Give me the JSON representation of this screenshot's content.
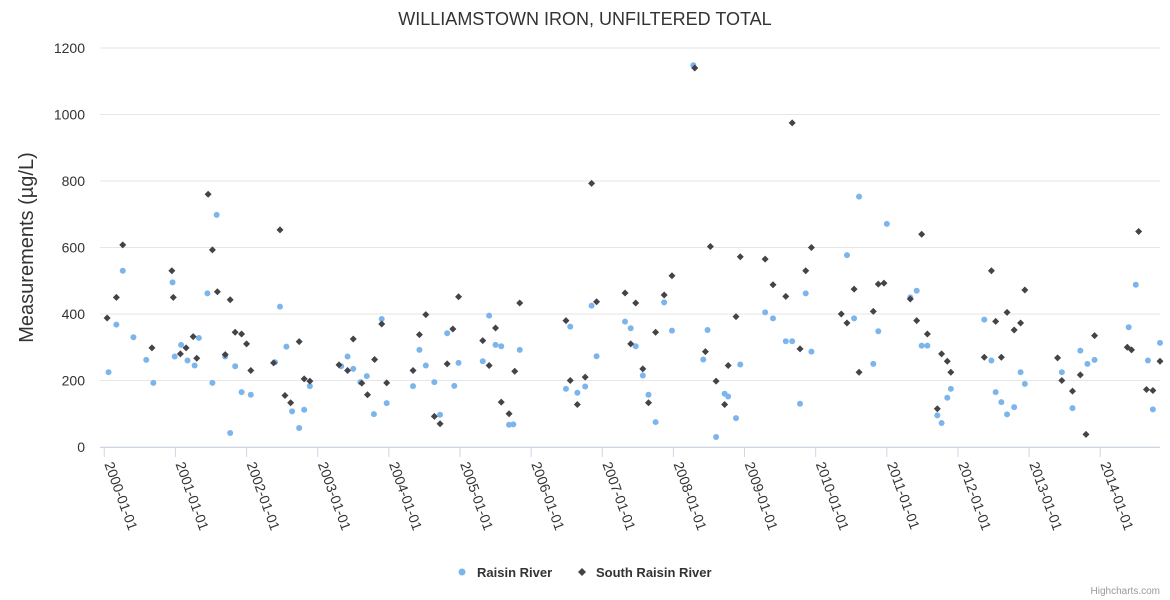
{
  "chart_data": {
    "type": "scatter",
    "title": "WILLIAMSTOWN IRON, UNFILTERED TOTAL",
    "xlabel": "",
    "ylabel": "Measurements (µg/L)",
    "xlim": [
      1999.94,
      2014.84
    ],
    "ylim": [
      0,
      1200
    ],
    "yticks": [
      0,
      200,
      400,
      600,
      800,
      1000,
      1200
    ],
    "xticks": [
      {
        "label": "2000-01-01",
        "value": 2000.0
      },
      {
        "label": "2001-01-01",
        "value": 2001.0
      },
      {
        "label": "2002-01-01",
        "value": 2002.0
      },
      {
        "label": "2003-01-01",
        "value": 2003.0
      },
      {
        "label": "2004-01-01",
        "value": 2004.0
      },
      {
        "label": "2005-01-01",
        "value": 2005.0
      },
      {
        "label": "2006-01-01",
        "value": 2006.0
      },
      {
        "label": "2007-01-01",
        "value": 2007.0
      },
      {
        "label": "2008-01-01",
        "value": 2008.0
      },
      {
        "label": "2009-01-01",
        "value": 2009.0
      },
      {
        "label": "2010-01-01",
        "value": 2010.0
      },
      {
        "label": "2011-01-01",
        "value": 2011.0
      },
      {
        "label": "2012-01-01",
        "value": 2012.0
      },
      {
        "label": "2013-01-01",
        "value": 2013.0
      },
      {
        "label": "2014-01-01",
        "value": 2014.0
      }
    ],
    "grid": true,
    "legend_position": "bottom-center",
    "series": [
      {
        "name": "Raisin River",
        "marker": "circle",
        "color": "#7cb5ec",
        "points": [
          [
            2000.06,
            225
          ],
          [
            2000.17,
            368
          ],
          [
            2000.26,
            530
          ],
          [
            2000.41,
            330
          ],
          [
            2000.59,
            262
          ],
          [
            2000.69,
            193
          ],
          [
            2000.96,
            495
          ],
          [
            2000.99,
            272
          ],
          [
            2001.08,
            307
          ],
          [
            2001.17,
            260
          ],
          [
            2001.27,
            245
          ],
          [
            2001.33,
            328
          ],
          [
            2001.45,
            462
          ],
          [
            2001.52,
            193
          ],
          [
            2001.58,
            698
          ],
          [
            2001.7,
            272
          ],
          [
            2001.77,
            42
          ],
          [
            2001.84,
            243
          ],
          [
            2001.93,
            165
          ],
          [
            2002.06,
            157
          ],
          [
            2002.4,
            255
          ],
          [
            2002.47,
            422
          ],
          [
            2002.56,
            302
          ],
          [
            2002.64,
            107
          ],
          [
            2002.74,
            57
          ],
          [
            2002.81,
            112
          ],
          [
            2002.89,
            183
          ],
          [
            2003.33,
            243
          ],
          [
            2003.42,
            272
          ],
          [
            2003.5,
            235
          ],
          [
            2003.6,
            195
          ],
          [
            2003.69,
            213
          ],
          [
            2003.79,
            99
          ],
          [
            2003.9,
            385
          ],
          [
            2003.97,
            132
          ],
          [
            2004.34,
            183
          ],
          [
            2004.43,
            292
          ],
          [
            2004.52,
            245
          ],
          [
            2004.64,
            195
          ],
          [
            2004.72,
            97
          ],
          [
            2004.82,
            342
          ],
          [
            2004.92,
            184
          ],
          [
            2004.98,
            253
          ],
          [
            2005.32,
            258
          ],
          [
            2005.41,
            395
          ],
          [
            2005.5,
            307
          ],
          [
            2005.58,
            303
          ],
          [
            2005.69,
            67
          ],
          [
            2005.75,
            68
          ],
          [
            2005.84,
            292
          ],
          [
            2006.49,
            175
          ],
          [
            2006.55,
            362
          ],
          [
            2006.65,
            163
          ],
          [
            2006.76,
            182
          ],
          [
            2006.85,
            425
          ],
          [
            2006.92,
            273
          ],
          [
            2007.32,
            377
          ],
          [
            2007.4,
            357
          ],
          [
            2007.47,
            303
          ],
          [
            2007.57,
            215
          ],
          [
            2007.65,
            157
          ],
          [
            2007.75,
            75
          ],
          [
            2007.87,
            435
          ],
          [
            2007.98,
            350
          ],
          [
            2008.28,
            1148
          ],
          [
            2008.42,
            263
          ],
          [
            2008.48,
            352
          ],
          [
            2008.6,
            30
          ],
          [
            2008.72,
            160
          ],
          [
            2008.77,
            152
          ],
          [
            2008.88,
            87
          ],
          [
            2008.94,
            248
          ],
          [
            2009.29,
            405
          ],
          [
            2009.4,
            387
          ],
          [
            2009.58,
            318
          ],
          [
            2009.67,
            318
          ],
          [
            2009.78,
            130
          ],
          [
            2009.86,
            462
          ],
          [
            2009.94,
            287
          ],
          [
            2010.44,
            577
          ],
          [
            2010.54,
            387
          ],
          [
            2010.61,
            753
          ],
          [
            2010.81,
            250
          ],
          [
            2010.88,
            348
          ],
          [
            2011.0,
            671
          ],
          [
            2011.33,
            450
          ],
          [
            2011.42,
            470
          ],
          [
            2011.49,
            305
          ],
          [
            2011.57,
            305
          ],
          [
            2011.71,
            95
          ],
          [
            2011.77,
            72
          ],
          [
            2011.85,
            148
          ],
          [
            2011.9,
            175
          ],
          [
            2012.37,
            383
          ],
          [
            2012.47,
            260
          ],
          [
            2012.53,
            165
          ],
          [
            2012.61,
            135
          ],
          [
            2012.69,
            98
          ],
          [
            2012.79,
            120
          ],
          [
            2012.88,
            225
          ],
          [
            2012.94,
            190
          ],
          [
            2013.46,
            225
          ],
          [
            2013.61,
            117
          ],
          [
            2013.72,
            290
          ],
          [
            2013.82,
            250
          ],
          [
            2013.92,
            262
          ],
          [
            2014.4,
            360
          ],
          [
            2014.5,
            488
          ],
          [
            2014.67,
            260
          ],
          [
            2014.74,
            113
          ],
          [
            2014.84,
            313
          ]
        ]
      },
      {
        "name": "South Raisin River",
        "marker": "diamond",
        "color": "#434348",
        "points": [
          [
            2000.04,
            388
          ],
          [
            2000.17,
            450
          ],
          [
            2000.26,
            608
          ],
          [
            2000.67,
            298
          ],
          [
            2000.95,
            530
          ],
          [
            2000.97,
            450
          ],
          [
            2001.07,
            280
          ],
          [
            2001.15,
            298
          ],
          [
            2001.25,
            332
          ],
          [
            2001.3,
            267
          ],
          [
            2001.46,
            760
          ],
          [
            2001.52,
            593
          ],
          [
            2001.59,
            467
          ],
          [
            2001.7,
            278
          ],
          [
            2001.77,
            443
          ],
          [
            2001.84,
            345
          ],
          [
            2001.93,
            340
          ],
          [
            2002.0,
            310
          ],
          [
            2002.06,
            230
          ],
          [
            2002.38,
            253
          ],
          [
            2002.47,
            653
          ],
          [
            2002.54,
            155
          ],
          [
            2002.62,
            133
          ],
          [
            2002.74,
            317
          ],
          [
            2002.81,
            205
          ],
          [
            2002.89,
            198
          ],
          [
            2003.3,
            247
          ],
          [
            2003.42,
            230
          ],
          [
            2003.5,
            325
          ],
          [
            2003.62,
            192
          ],
          [
            2003.7,
            157
          ],
          [
            2003.8,
            263
          ],
          [
            2003.9,
            370
          ],
          [
            2003.97,
            193
          ],
          [
            2004.34,
            230
          ],
          [
            2004.43,
            338
          ],
          [
            2004.52,
            398
          ],
          [
            2004.64,
            92
          ],
          [
            2004.72,
            70
          ],
          [
            2004.82,
            250
          ],
          [
            2004.9,
            355
          ],
          [
            2004.98,
            452
          ],
          [
            2005.32,
            320
          ],
          [
            2005.41,
            245
          ],
          [
            2005.5,
            358
          ],
          [
            2005.58,
            135
          ],
          [
            2005.69,
            100
          ],
          [
            2005.77,
            228
          ],
          [
            2005.84,
            433
          ],
          [
            2006.49,
            380
          ],
          [
            2006.55,
            200
          ],
          [
            2006.65,
            128
          ],
          [
            2006.76,
            210
          ],
          [
            2006.85,
            793
          ],
          [
            2006.92,
            437
          ],
          [
            2007.32,
            463
          ],
          [
            2007.4,
            310
          ],
          [
            2007.47,
            433
          ],
          [
            2007.57,
            235
          ],
          [
            2007.65,
            133
          ],
          [
            2007.75,
            345
          ],
          [
            2007.87,
            457
          ],
          [
            2007.98,
            515
          ],
          [
            2008.3,
            1140
          ],
          [
            2008.45,
            287
          ],
          [
            2008.52,
            603
          ],
          [
            2008.6,
            198
          ],
          [
            2008.72,
            128
          ],
          [
            2008.77,
            245
          ],
          [
            2008.88,
            392
          ],
          [
            2008.94,
            572
          ],
          [
            2009.29,
            565
          ],
          [
            2009.4,
            488
          ],
          [
            2009.58,
            453
          ],
          [
            2009.67,
            975
          ],
          [
            2009.78,
            295
          ],
          [
            2009.86,
            530
          ],
          [
            2009.94,
            600
          ],
          [
            2010.36,
            400
          ],
          [
            2010.44,
            373
          ],
          [
            2010.54,
            475
          ],
          [
            2010.61,
            225
          ],
          [
            2010.81,
            408
          ],
          [
            2010.88,
            490
          ],
          [
            2010.96,
            493
          ],
          [
            2011.33,
            445
          ],
          [
            2011.42,
            380
          ],
          [
            2011.49,
            640
          ],
          [
            2011.57,
            340
          ],
          [
            2011.71,
            115
          ],
          [
            2011.77,
            280
          ],
          [
            2011.85,
            258
          ],
          [
            2011.9,
            225
          ],
          [
            2012.37,
            270
          ],
          [
            2012.47,
            530
          ],
          [
            2012.53,
            378
          ],
          [
            2012.61,
            270
          ],
          [
            2012.69,
            405
          ],
          [
            2012.79,
            352
          ],
          [
            2012.88,
            373
          ],
          [
            2012.94,
            472
          ],
          [
            2013.4,
            268
          ],
          [
            2013.46,
            200
          ],
          [
            2013.61,
            168
          ],
          [
            2013.72,
            217
          ],
          [
            2013.8,
            38
          ],
          [
            2013.92,
            335
          ],
          [
            2014.38,
            300
          ],
          [
            2014.44,
            292
          ],
          [
            2014.54,
            648
          ],
          [
            2014.65,
            173
          ],
          [
            2014.74,
            170
          ],
          [
            2014.84,
            258
          ]
        ]
      }
    ]
  },
  "credits": "Highcharts.com"
}
